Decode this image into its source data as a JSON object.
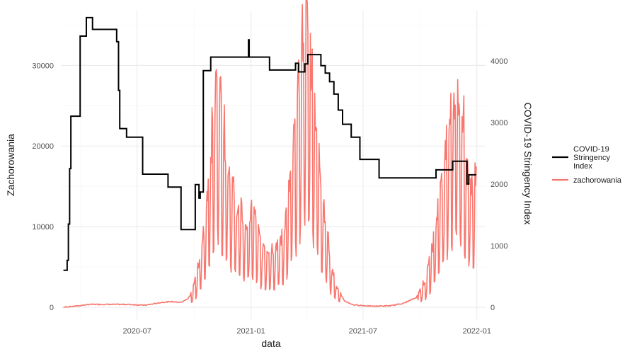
{
  "chart_data": {
    "type": "line",
    "title": "",
    "xlabel": "data",
    "ylabel_left": "Zachorowania",
    "ylabel_right": "COVID-19 Stringency Index",
    "x_ticks": [
      "2020-07",
      "2021-01",
      "2021-07",
      "2022-01"
    ],
    "y_left_ticks": [
      "0",
      "10000",
      "20000",
      "30000"
    ],
    "y_right_ticks": [
      "0",
      "1000",
      "2000",
      "3000",
      "4000"
    ],
    "xlim": [
      "2020-03-01",
      "2022-01-15"
    ],
    "ylim_left": [
      -1500,
      36800
    ],
    "ylim_right": [
      -196,
      4814
    ],
    "grid": true,
    "legend_position": "right",
    "series": [
      {
        "name": "COVID-19 Stringency Index",
        "axis": "right",
        "color": "#000000",
        "points": [
          [
            "2020-03-04",
            600
          ],
          [
            "2020-03-10",
            600
          ],
          [
            "2020-03-10",
            760
          ],
          [
            "2020-03-12",
            760
          ],
          [
            "2020-03-12",
            1350
          ],
          [
            "2020-03-14",
            1350
          ],
          [
            "2020-03-14",
            2250
          ],
          [
            "2020-03-16",
            2250
          ],
          [
            "2020-03-16",
            3100
          ],
          [
            "2020-03-31",
            3100
          ],
          [
            "2020-03-31",
            4400
          ],
          [
            "2020-04-10",
            4400
          ],
          [
            "2020-04-10",
            4700
          ],
          [
            "2020-04-20",
            4700
          ],
          [
            "2020-04-20",
            4510
          ],
          [
            "2020-05-29",
            4510
          ],
          [
            "2020-05-29",
            4310
          ],
          [
            "2020-06-01",
            4310
          ],
          [
            "2020-06-01",
            3520
          ],
          [
            "2020-06-03",
            3520
          ],
          [
            "2020-06-03",
            2900
          ],
          [
            "2020-06-14",
            2900
          ],
          [
            "2020-06-14",
            2760
          ],
          [
            "2020-07-10",
            2760
          ],
          [
            "2020-07-10",
            2160
          ],
          [
            "2020-08-20",
            2160
          ],
          [
            "2020-08-20",
            1950
          ],
          [
            "2020-09-10",
            1950
          ],
          [
            "2020-09-10",
            1260
          ],
          [
            "2020-10-03",
            1260
          ],
          [
            "2020-10-03",
            1990
          ],
          [
            "2020-10-09",
            1990
          ],
          [
            "2020-10-09",
            1770
          ],
          [
            "2020-10-11",
            1770
          ],
          [
            "2020-10-11",
            1870
          ],
          [
            "2020-10-16",
            1870
          ],
          [
            "2020-10-16",
            3840
          ],
          [
            "2020-10-28",
            3840
          ],
          [
            "2020-10-28",
            4060
          ],
          [
            "2020-12-28",
            4060
          ],
          [
            "2020-12-28",
            4340
          ],
          [
            "2020-12-29",
            4340
          ],
          [
            "2020-12-29",
            4060
          ],
          [
            "2021-01-31",
            4060
          ],
          [
            "2021-01-31",
            3850
          ],
          [
            "2021-03-14",
            3850
          ],
          [
            "2021-03-14",
            3960
          ],
          [
            "2021-03-19",
            3960
          ],
          [
            "2021-03-19",
            3820
          ],
          [
            "2021-03-29",
            3820
          ],
          [
            "2021-03-29",
            3950
          ],
          [
            "2021-04-03",
            3950
          ],
          [
            "2021-04-03",
            4100
          ],
          [
            "2021-04-24",
            4100
          ],
          [
            "2021-04-24",
            3920
          ],
          [
            "2021-05-01",
            3920
          ],
          [
            "2021-05-01",
            3800
          ],
          [
            "2021-05-08",
            3800
          ],
          [
            "2021-05-08",
            3660
          ],
          [
            "2021-05-15",
            3660
          ],
          [
            "2021-05-15",
            3460
          ],
          [
            "2021-05-22",
            3460
          ],
          [
            "2021-05-22",
            3200
          ],
          [
            "2021-05-29",
            3200
          ],
          [
            "2021-05-29",
            2970
          ],
          [
            "2021-06-12",
            2970
          ],
          [
            "2021-06-12",
            2760
          ],
          [
            "2021-06-26",
            2760
          ],
          [
            "2021-06-26",
            2400
          ],
          [
            "2021-07-27",
            2400
          ],
          [
            "2021-07-27",
            2100
          ],
          [
            "2021-10-27",
            2100
          ],
          [
            "2021-10-27",
            2230
          ],
          [
            "2021-11-23",
            2230
          ],
          [
            "2021-11-23",
            2370
          ],
          [
            "2021-12-16",
            2370
          ],
          [
            "2021-12-16",
            2000
          ],
          [
            "2021-12-19",
            2000
          ],
          [
            "2021-12-19",
            2150
          ],
          [
            "2021-12-31",
            2150
          ]
        ]
      },
      {
        "name": "zachorowania",
        "axis": "left",
        "color": "#f8766d",
        "anchors": [
          [
            "2020-03-04",
            0
          ],
          [
            "2020-03-25",
            150
          ],
          [
            "2020-04-15",
            350
          ],
          [
            "2020-05-15",
            350
          ],
          [
            "2020-06-15",
            350
          ],
          [
            "2020-07-15",
            250
          ],
          [
            "2020-08-10",
            600
          ],
          [
            "2020-08-25",
            700
          ],
          [
            "2020-09-10",
            600
          ],
          [
            "2020-09-20",
            1000
          ],
          [
            "2020-09-28",
            1800
          ],
          [
            "2020-10-05",
            3500
          ],
          [
            "2020-10-12",
            6000
          ],
          [
            "2020-10-20",
            10000
          ],
          [
            "2020-10-26",
            16000
          ],
          [
            "2020-11-02",
            21000
          ],
          [
            "2020-11-07",
            25500
          ],
          [
            "2020-11-12",
            23000
          ],
          [
            "2020-11-17",
            20000
          ],
          [
            "2020-11-25",
            16000
          ],
          [
            "2020-12-05",
            12000
          ],
          [
            "2020-12-15",
            10500
          ],
          [
            "2020-12-25",
            9000
          ],
          [
            "2021-01-05",
            10500
          ],
          [
            "2021-01-15",
            7500
          ],
          [
            "2021-01-25",
            6500
          ],
          [
            "2021-02-05",
            6500
          ],
          [
            "2021-02-20",
            7500
          ],
          [
            "2021-03-01",
            11000
          ],
          [
            "2021-03-10",
            17000
          ],
          [
            "2021-03-20",
            24000
          ],
          [
            "2021-03-28",
            32000
          ],
          [
            "2021-04-05",
            29000
          ],
          [
            "2021-04-12",
            24000
          ],
          [
            "2021-04-20",
            17000
          ],
          [
            "2021-05-01",
            10000
          ],
          [
            "2021-05-10",
            5000
          ],
          [
            "2021-05-20",
            2200
          ],
          [
            "2021-06-01",
            800
          ],
          [
            "2021-06-15",
            300
          ],
          [
            "2021-07-15",
            120
          ],
          [
            "2021-08-15",
            180
          ],
          [
            "2021-09-05",
            500
          ],
          [
            "2021-09-25",
            1200
          ],
          [
            "2021-10-10",
            3000
          ],
          [
            "2021-10-20",
            6000
          ],
          [
            "2021-10-30",
            10500
          ],
          [
            "2021-11-10",
            16000
          ],
          [
            "2021-11-20",
            21000
          ],
          [
            "2021-11-28",
            24500
          ],
          [
            "2021-12-05",
            23000
          ],
          [
            "2021-12-15",
            18000
          ],
          [
            "2021-12-25",
            12000
          ],
          [
            "2021-12-31",
            14500
          ]
        ]
      }
    ]
  }
}
